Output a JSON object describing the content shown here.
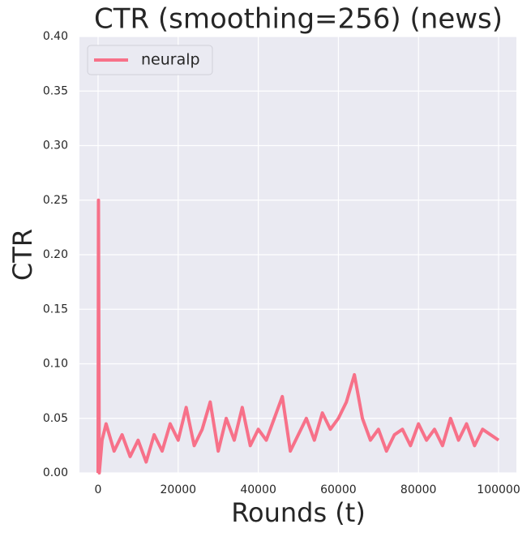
{
  "chart_data": {
    "type": "line",
    "title": "CTR (smoothing=256) (news)",
    "xlabel": "Rounds (t)",
    "ylabel": "CTR",
    "x": [
      0,
      100,
      300,
      1000,
      2000,
      4000,
      6000,
      8000,
      10000,
      12000,
      14000,
      16000,
      18000,
      20000,
      22000,
      24000,
      26000,
      28000,
      30000,
      32000,
      34000,
      36000,
      38000,
      40000,
      42000,
      44000,
      46000,
      48000,
      50000,
      52000,
      54000,
      56000,
      58000,
      60000,
      62000,
      64000,
      66000,
      68000,
      70000,
      72000,
      74000,
      76000,
      78000,
      80000,
      82000,
      84000,
      86000,
      88000,
      90000,
      92000,
      94000,
      96000,
      98000,
      100000
    ],
    "series": [
      {
        "name": "neuralp",
        "color": "#f77189",
        "values": [
          0,
          0.25,
          0,
          0.03,
          0.045,
          0.02,
          0.035,
          0.015,
          0.03,
          0.01,
          0.035,
          0.02,
          0.045,
          0.03,
          0.06,
          0.025,
          0.04,
          0.065,
          0.02,
          0.05,
          0.03,
          0.06,
          0.025,
          0.04,
          0.03,
          0.05,
          0.07,
          0.02,
          0.035,
          0.05,
          0.03,
          0.055,
          0.04,
          0.05,
          0.065,
          0.09,
          0.05,
          0.03,
          0.04,
          0.02,
          0.035,
          0.04,
          0.025,
          0.045,
          0.03,
          0.04,
          0.025,
          0.05,
          0.03,
          0.045,
          0.025,
          0.04,
          0.035,
          0.03
        ]
      }
    ],
    "xlim": [
      -4650,
      104450
    ],
    "ylim": [
      0,
      0.4
    ],
    "xticks": [
      0,
      20000,
      40000,
      60000,
      80000,
      100000
    ],
    "yticks": [
      {
        "value": 0,
        "label": "0.00"
      },
      {
        "value": 0.05,
        "label": "0.05"
      },
      {
        "value": 0.1,
        "label": "0.10"
      },
      {
        "value": 0.15,
        "label": "0.15"
      },
      {
        "value": 0.2,
        "label": "0.20"
      },
      {
        "value": 0.25,
        "label": "0.25"
      },
      {
        "value": 0.3,
        "label": "0.30"
      },
      {
        "value": 0.35,
        "label": "0.35"
      },
      {
        "value": 0.4,
        "label": "0.40"
      }
    ],
    "grid": true,
    "legend": "upper left"
  }
}
